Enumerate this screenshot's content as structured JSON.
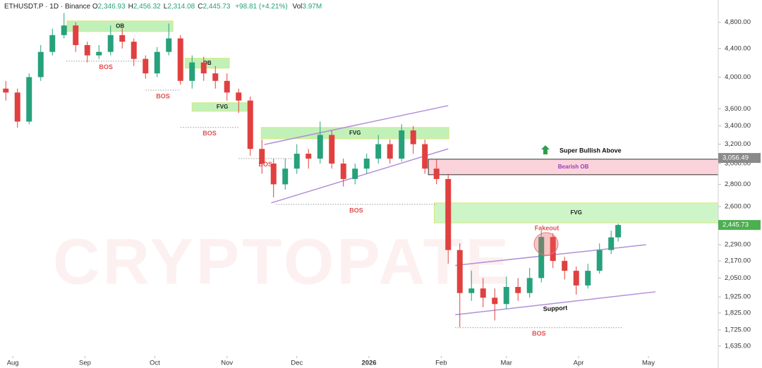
{
  "header": {
    "symbol": "ETHUSDT.P · 1D · Binance",
    "ohlc": [
      {
        "label": "O",
        "value": "2,346.93"
      },
      {
        "label": "H",
        "value": "2,456.32"
      },
      {
        "label": "L",
        "value": "2,314.08"
      },
      {
        "label": "C",
        "value": "2,445.73"
      }
    ],
    "change": "+98.81 (+4.21%)",
    "volume_label": "Vol",
    "volume": "3.97M"
  },
  "chart_data": {
    "type": "candlestick",
    "log_scale": true,
    "watermark": "CRYPTOPATE",
    "up_color": "#26a17b",
    "down_color": "#e0403f",
    "xlim": [
      -5.5,
      303
    ],
    "ylim": [
      1563,
      5170
    ],
    "xticks": [
      {
        "value": 0,
        "label": "Aug"
      },
      {
        "value": 31,
        "label": "Sep"
      },
      {
        "value": 61,
        "label": "Oct"
      },
      {
        "value": 92,
        "label": "Nov"
      },
      {
        "value": 122,
        "label": "Dec"
      },
      {
        "value": 153,
        "label": "2026"
      },
      {
        "value": 184,
        "label": "Feb"
      },
      {
        "value": 212,
        "label": "Mar"
      },
      {
        "value": 243,
        "label": "Apr"
      },
      {
        "value": 273,
        "label": "May"
      }
    ],
    "yticks": [
      {
        "value": 4800,
        "label": "4,800.00"
      },
      {
        "value": 4400,
        "label": "4,400.00"
      },
      {
        "value": 4000,
        "label": "4,000.00"
      },
      {
        "value": 3600,
        "label": "3,600.00"
      },
      {
        "value": 3400,
        "label": "3,400.00"
      },
      {
        "value": 3200,
        "label": "3,200.00"
      },
      {
        "value": 3000,
        "label": "3,000.00"
      },
      {
        "value": 2800,
        "label": "2,800.00"
      },
      {
        "value": 2600,
        "label": "2,600.00"
      },
      {
        "value": 2290,
        "label": "2,290.00"
      },
      {
        "value": 2170,
        "label": "2,170.00"
      },
      {
        "value": 2050,
        "label": "2,050.00"
      },
      {
        "value": 1925,
        "label": "1,925.00"
      },
      {
        "value": 1825,
        "label": "1,825.00"
      },
      {
        "value": 1725,
        "label": "1,725.00"
      },
      {
        "value": 1635,
        "label": "1,635.00"
      }
    ],
    "x": [
      -3,
      2,
      7,
      12,
      17,
      22,
      27,
      32,
      37,
      42,
      47,
      52,
      57,
      62,
      67,
      72,
      77,
      82,
      87,
      92,
      97,
      102,
      107,
      112,
      117,
      122,
      127,
      132,
      137,
      142,
      147,
      152,
      157,
      162,
      167,
      172,
      177,
      182,
      187,
      192,
      197,
      202,
      207,
      212,
      217,
      222,
      227,
      232,
      237,
      242,
      247,
      252,
      257,
      260
    ],
    "open": [
      3850,
      3800,
      3450,
      4000,
      4350,
      4600,
      4750,
      4450,
      4300,
      4350,
      4600,
      4500,
      4250,
      4050,
      4350,
      4550,
      3950,
      4200,
      4050,
      3950,
      3800,
      3700,
      3150,
      3000,
      2800,
      2950,
      3100,
      3050,
      3300,
      3000,
      2850,
      2950,
      3050,
      3200,
      3050,
      3350,
      3200,
      2950,
      2850,
      2250,
      1950,
      1980,
      1920,
      1880,
      1990,
      1950,
      2050,
      2350,
      2170,
      2100,
      2000,
      2100,
      2250,
      2346.93
    ],
    "high": [
      3950,
      3850,
      4050,
      4450,
      4700,
      4950,
      4800,
      4500,
      4450,
      4750,
      4700,
      4550,
      4300,
      4420,
      4780,
      4600,
      4300,
      4280,
      4150,
      4050,
      3850,
      3750,
      3250,
      3050,
      3050,
      3200,
      3150,
      3450,
      3350,
      3050,
      3000,
      3100,
      3300,
      3250,
      3420,
      3400,
      3250,
      3050,
      2900,
      2300,
      2100,
      2050,
      1980,
      2060,
      2050,
      2120,
      2400,
      2380,
      2200,
      2130,
      2150,
      2300,
      2400,
      2456.32
    ],
    "low": [
      3700,
      3380,
      3420,
      3950,
      4300,
      4550,
      4350,
      4200,
      4250,
      4300,
      4400,
      4150,
      3980,
      4000,
      4300,
      3900,
      3850,
      3950,
      3850,
      3700,
      3550,
      3080,
      2900,
      2680,
      2750,
      2900,
      2950,
      3000,
      2950,
      2780,
      2800,
      2900,
      3000,
      3000,
      3020,
      3100,
      2900,
      2800,
      2150,
      1740,
      1900,
      1860,
      1780,
      1850,
      1900,
      1920,
      2020,
      2120,
      2040,
      1940,
      1980,
      2080,
      2220,
      2314.08
    ],
    "close": [
      3800,
      3450,
      4000,
      4350,
      4600,
      4750,
      4450,
      4300,
      4350,
      4600,
      4500,
      4250,
      4050,
      4350,
      4550,
      3950,
      4200,
      4050,
      3950,
      3800,
      3700,
      3150,
      3000,
      2800,
      2950,
      3100,
      3050,
      3300,
      3000,
      2850,
      2950,
      3050,
      3200,
      3050,
      3350,
      3200,
      2950,
      2850,
      2250,
      1950,
      1980,
      1920,
      1880,
      1990,
      1950,
      2050,
      2350,
      2170,
      2100,
      2000,
      2100,
      2250,
      2346.93,
      2445.73
    ],
    "zones": [
      {
        "label": "OB",
        "x": [
          23.3,
          68.8
        ],
        "y": [
          4655,
          4822
        ],
        "color": "#b6efad",
        "label_color": "#222222"
      },
      {
        "label": "OB",
        "x": [
          74,
          93
        ],
        "y": [
          4121,
          4259
        ],
        "color": "#b6efad",
        "label_color": "#222222"
      },
      {
        "label": "FVG",
        "x": [
          77,
          103
        ],
        "y": [
          3571,
          3673
        ],
        "color": "#b6efad",
        "label_color": "#222222"
      },
      {
        "label": "FVG",
        "x": [
          106.7,
          187.3
        ],
        "y": [
          3258,
          3383
        ],
        "color": "#b6efad",
        "label_color": "#222222"
      },
      {
        "label": "Bearish OB",
        "x": [
          178.5,
          303
        ],
        "y": [
          2891,
          3044
        ],
        "color": "#f9cdd3",
        "label_color": "#9b3fb5"
      },
      {
        "label": "FVG",
        "x": [
          181,
          303
        ],
        "y": [
          2463,
          2632
        ],
        "color": "#c5f3bd",
        "label_color": "#222222"
      }
    ],
    "trendlines": [
      {
        "x": [
          108,
          187
        ],
        "y": [
          3196,
          3638
        ]
      },
      {
        "x": [
          111,
          187
        ],
        "y": [
          2632,
          3151
        ]
      },
      {
        "x": [
          190,
          272
        ],
        "y": [
          2138,
          2290
        ]
      },
      {
        "x": [
          190,
          276
        ],
        "y": [
          1814,
          1958
        ]
      }
    ],
    "trendline_color": "#b48fd8",
    "bos": [
      {
        "label": "BOS",
        "price": 4218,
        "x": [
          23,
          57
        ]
      },
      {
        "label": "BOS",
        "price": 3830,
        "x": [
          57,
          72
        ]
      },
      {
        "label": "BOS",
        "price": 3383,
        "x": [
          72,
          97
        ]
      },
      {
        "label": "BOS",
        "price": 3051,
        "x": [
          97,
          120
        ]
      },
      {
        "label": "BOS",
        "price": 2619,
        "x": [
          113,
          182
        ]
      },
      {
        "label": "BOS",
        "price": 1738,
        "x": [
          190,
          262
        ]
      }
    ],
    "bos_color": "#e05050",
    "price_tags": [
      {
        "value": 3056.49,
        "label": "3,056.49",
        "color": "#8a8a8a"
      },
      {
        "value": 2445.73,
        "label": "2,445.73",
        "color": "#4caf50"
      }
    ],
    "annotations": [
      "Super Bullish Above",
      "Fakeout",
      "Support"
    ]
  }
}
